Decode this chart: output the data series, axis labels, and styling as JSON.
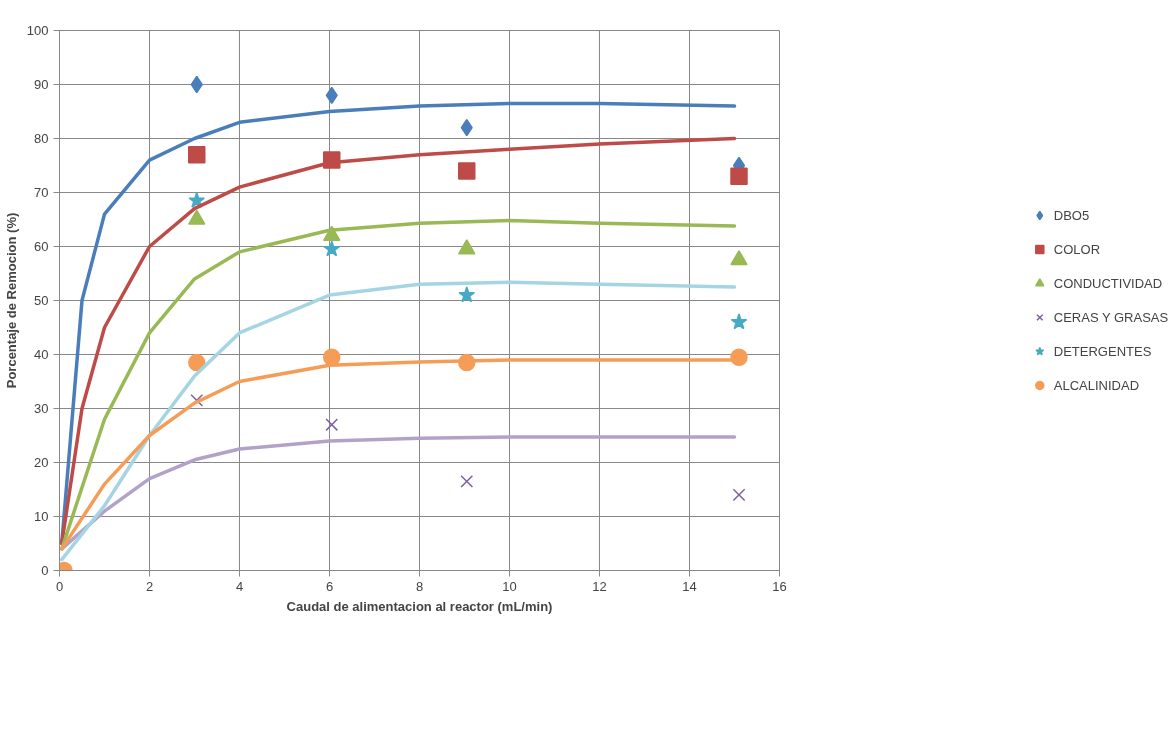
{
  "chart_data": {
    "type": "scatter",
    "xlabel": "Caudal de alimentacion al reactor (mL/min)",
    "ylabel": "Porcentaje de Remocion (%)",
    "xlim": [
      0,
      16
    ],
    "ylim": [
      0,
      100
    ],
    "xticks": [
      0,
      2,
      4,
      6,
      8,
      10,
      12,
      14,
      16
    ],
    "yticks": [
      0,
      10,
      20,
      30,
      40,
      50,
      60,
      70,
      80,
      90,
      100
    ],
    "grid": true,
    "legend": "right",
    "series": [
      {
        "name": "DBO5",
        "color": "#4a7ebb",
        "marker": "diamond",
        "x": [
          3.05,
          6.05,
          9.05,
          15.1
        ],
        "values": [
          90,
          88,
          82,
          75
        ]
      },
      {
        "name": "COLOR",
        "color": "#be4b48",
        "marker": "square",
        "x": [
          3.05,
          6.05,
          9.05,
          15.1
        ],
        "values": [
          77,
          76,
          74,
          73
        ]
      },
      {
        "name": "CONDUCTIVIDAD",
        "color": "#98b954",
        "marker": "triangle",
        "x": [
          3.05,
          6.05,
          9.05,
          15.1
        ],
        "values": [
          65,
          62,
          59.5,
          57.5
        ]
      },
      {
        "name": "CERAS Y GRASAS",
        "color": "#7d60a0",
        "marker": "cross",
        "x": [
          3.05,
          6.05,
          9.05,
          15.1
        ],
        "values": [
          31.5,
          27,
          16.5,
          14
        ]
      },
      {
        "name": "DETERGENTES",
        "color": "#46aac5",
        "marker": "star",
        "x": [
          3.05,
          6.05,
          9.05,
          15.1
        ],
        "values": [
          68.5,
          59.5,
          51,
          46
        ]
      },
      {
        "name": "ALCALINIDAD",
        "color": "#f59d56",
        "marker": "circle",
        "x": [
          0.1,
          3.05,
          6.05,
          9.05,
          15.1
        ],
        "values": [
          0,
          38.5,
          39.5,
          38.5,
          39.5
        ]
      },
      {
        "type": "line",
        "color": "#4a7ebb",
        "x": [
          0.05,
          0.3,
          0.5,
          1,
          2,
          3,
          4,
          6,
          8,
          10,
          12,
          15
        ],
        "values": [
          5,
          30,
          50,
          66,
          76,
          80,
          83,
          85,
          86,
          86.5,
          86.5,
          86
        ]
      },
      {
        "type": "line",
        "color": "#be4b48",
        "x": [
          0.05,
          0.5,
          1,
          2,
          3,
          4,
          6,
          8,
          10,
          12,
          15
        ],
        "values": [
          5,
          30,
          45,
          60,
          67,
          71,
          75.5,
          77,
          78,
          79,
          80
        ]
      },
      {
        "type": "line",
        "color": "#98b954",
        "x": [
          0.05,
          1,
          2,
          3,
          4,
          6,
          8,
          10,
          12,
          15
        ],
        "values": [
          4,
          28,
          44,
          54,
          59,
          63,
          64.3,
          64.8,
          64.3,
          63.8
        ]
      },
      {
        "type": "line",
        "color": "#b3a2c7",
        "x": [
          0.05,
          1,
          2,
          3,
          4,
          6,
          8,
          10,
          15
        ],
        "values": [
          4,
          11,
          17,
          20.5,
          22.5,
          24,
          24.5,
          24.7,
          24.7
        ]
      },
      {
        "type": "line",
        "color": "#a5d5e2",
        "x": [
          0.05,
          1,
          2,
          3,
          4,
          6,
          8,
          10,
          12,
          15
        ],
        "values": [
          2,
          12,
          25,
          36,
          44,
          51,
          53,
          53.4,
          53,
          52.5
        ]
      },
      {
        "type": "line",
        "color": "#f59d56",
        "x": [
          0.05,
          1,
          2,
          3,
          4,
          6,
          8,
          10,
          15
        ],
        "values": [
          4,
          16,
          25,
          31,
          35,
          38,
          38.6,
          39,
          39
        ]
      }
    ]
  }
}
